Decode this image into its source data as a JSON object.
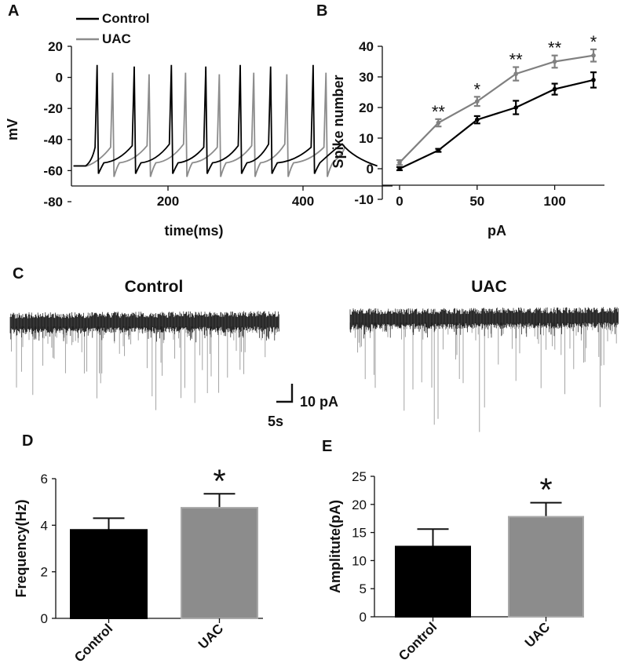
{
  "chart_data": [
    {
      "panel": "A",
      "type": "line",
      "title": "",
      "xlabel": "time(ms)",
      "ylabel": "mV",
      "xticks": [
        200,
        400
      ],
      "xlim": [
        50,
        520
      ],
      "ylim": [
        -80,
        20
      ],
      "yticks": [
        20,
        0,
        -20,
        -40,
        -60,
        -80
      ],
      "legend": [
        "Control",
        "UAC"
      ],
      "legend_position": "top-left",
      "colors": {
        "Control": "#000000",
        "UAC": "#8c8c8c"
      },
      "series": [
        {
          "name": "Control",
          "spike_times_ms": [
            95,
            150,
            205,
            256,
            307,
            352,
            415
          ],
          "baseline_mV": -57,
          "spike_peak_mV": 8,
          "trough_mV": -62
        },
        {
          "name": "UAC",
          "spike_times_ms": [
            118,
            172,
            226,
            276,
            327,
            376,
            434
          ],
          "baseline_mV": -57,
          "spike_peak_mV": 3,
          "trough_mV": -64
        }
      ]
    },
    {
      "panel": "B",
      "type": "line",
      "title": "",
      "xlabel": "pA",
      "ylabel": "Spike number",
      "x": [
        0,
        25,
        50,
        75,
        100,
        125
      ],
      "xticks": [
        0,
        50,
        100
      ],
      "ylim": [
        -10,
        40
      ],
      "yticks": [
        40,
        30,
        20,
        10,
        0,
        -10
      ],
      "series": [
        {
          "name": "Control",
          "color": "#000000",
          "values": [
            0,
            6,
            16,
            20,
            26,
            29
          ],
          "errors": [
            0.5,
            0.5,
            1.2,
            2.2,
            1.8,
            2.5
          ]
        },
        {
          "name": "UAC",
          "color": "#808080",
          "values": [
            2,
            15,
            22,
            31,
            35,
            37
          ],
          "errors": [
            0.8,
            1.2,
            1.5,
            2.2,
            2.0,
            2.0
          ]
        }
      ],
      "annotations": [
        "",
        "**",
        "*",
        "**",
        "**",
        "*"
      ]
    },
    {
      "panel": "C",
      "type": "line",
      "traces": [
        {
          "name": "Control"
        },
        {
          "name": "UAC"
        }
      ],
      "scale_bar_y": "10 pA",
      "scale_bar_x": "5s"
    },
    {
      "panel": "D",
      "type": "bar",
      "title": "",
      "xlabel": "",
      "ylabel": "Frequency(Hz)",
      "categories": [
        "Control",
        "UAC"
      ],
      "values": [
        3.8,
        4.75
      ],
      "errors": [
        0.5,
        0.6
      ],
      "colors": [
        "#000000",
        "#8c8c8c"
      ],
      "ylim": [
        0,
        6
      ],
      "yticks": [
        6,
        4,
        2,
        0
      ],
      "annotations": [
        "",
        "*"
      ]
    },
    {
      "panel": "E",
      "type": "bar",
      "title": "",
      "xlabel": "",
      "ylabel": "Amplitute(pA)",
      "categories": [
        "Control",
        "UAC"
      ],
      "values": [
        12.5,
        17.8
      ],
      "errors": [
        3.1,
        2.5
      ],
      "colors": [
        "#000000",
        "#8c8c8c"
      ],
      "ylim": [
        0,
        25
      ],
      "yticks": [
        25,
        20,
        15,
        10,
        5,
        0
      ],
      "annotations": [
        "",
        "*"
      ]
    }
  ],
  "panel_labels": [
    "A",
    "B",
    "C",
    "D",
    "E"
  ]
}
